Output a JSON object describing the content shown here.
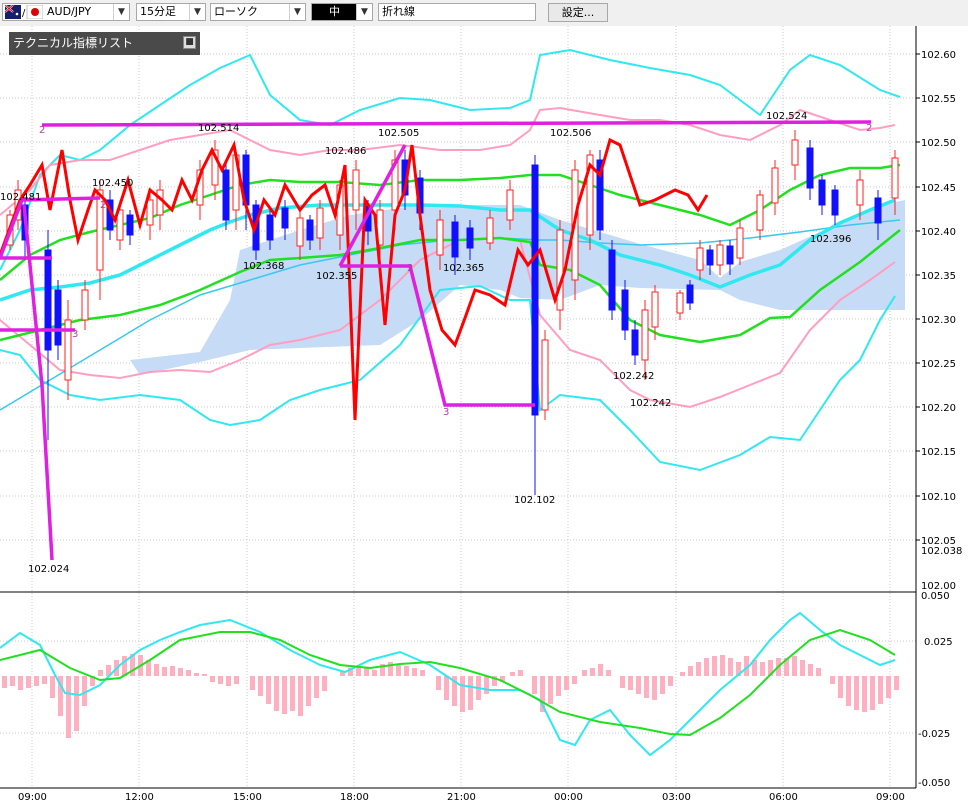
{
  "toolbar": {
    "pair": "AUD/JPY",
    "timeframe": "15分足",
    "chart_type": "ローソク",
    "size": "中",
    "line_type": "折れ線",
    "settings_label": "設定..."
  },
  "indicator_panel": {
    "title": "テクニカル指標リスト"
  },
  "chart_data": {
    "type": "candlestick",
    "price_axis": {
      "ticks": [
        "102.60",
        "102.55",
        "102.50",
        "102.45",
        "102.40",
        "102.35",
        "102.30",
        "102.25",
        "102.20",
        "102.15",
        "102.10",
        "102.05",
        "102.038",
        "102.00"
      ],
      "range": [
        102.0,
        102.6
      ]
    },
    "macd_axis": {
      "ticks": [
        "0.050",
        "0.025",
        "-0.025",
        "-0.050"
      ],
      "range": [
        -0.05,
        0.05
      ]
    },
    "time_axis": [
      "09:00",
      "12:00",
      "15:00",
      "18:00",
      "21:00",
      "00:00",
      "03:00",
      "06:00",
      "09:00"
    ],
    "annotations": [
      "102.481",
      "102.450",
      "102.514",
      "102.368",
      "102.486",
      "102.355",
      "102.505",
      "102.365",
      "102.506",
      "102.102",
      "102.242",
      "102.242",
      "102.524",
      "102.396",
      "102.024"
    ],
    "wave_labels": [
      "2",
      "3",
      "2",
      "2",
      "3",
      "2"
    ],
    "colors": {
      "up_candle": "#ff2222",
      "down_candle": "#1010ff",
      "bollinger_outer": "#30e8f0",
      "bollinger_inner": "#ff9ec0",
      "moving_average": "#20e020",
      "ichimoku_cloud": "#c6dcf6",
      "zigzag": "#e020e0",
      "line_chart": "#ff0000",
      "macd_hist": "#ffb0c0"
    }
  }
}
